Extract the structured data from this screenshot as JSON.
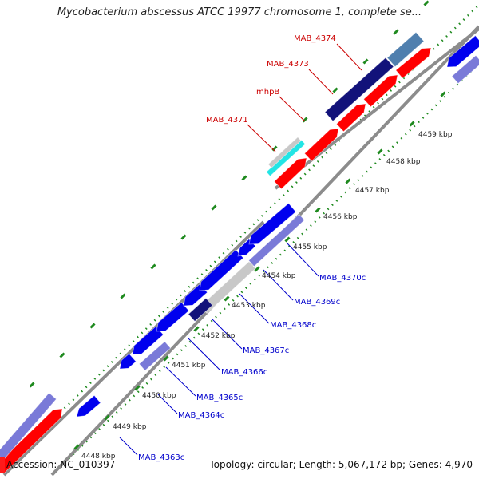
{
  "title": "Mycobacterium abscessus ATCC 19977 chromosome 1, complete se...",
  "footer": {
    "accession": "Accession: NC_010397",
    "summary": "Topology: circular; Length: 5,067,172 bp; Genes: 4,970"
  },
  "colors": {
    "forward_gene": "#ff0000",
    "reverse_gene": "#0000ee",
    "dark_gene": "#12127a",
    "lavender_gene": "#7a7ad8",
    "steel_gene": "#4f7fae",
    "cyan_gene": "#22e5e5",
    "pseudo_gene": "#c8c8c8",
    "backbone": "#8c8c8c",
    "tick": "#1f8a1f",
    "label_forward": "#cc0000",
    "label_reverse": "#0000cc"
  },
  "scale_ticks": [
    "4448 kbp",
    "4449 kbp",
    "4450 kbp",
    "4451 kbp",
    "4452 kbp",
    "4453 kbp",
    "4454 kbp",
    "4455 kbp",
    "4456 kbp",
    "4457 kbp",
    "4458 kbp",
    "4459 kbp"
  ],
  "forward_labels": [
    "MAB_4371",
    "mhpB",
    "MAB_4373",
    "MAB_4374"
  ],
  "reverse_labels": [
    "MAB_4363c",
    "MAB_4364c",
    "MAB_4365c",
    "MAB_4366c",
    "MAB_4367c",
    "MAB_4368c",
    "MAB_4369c",
    "MAB_4370c"
  ]
}
